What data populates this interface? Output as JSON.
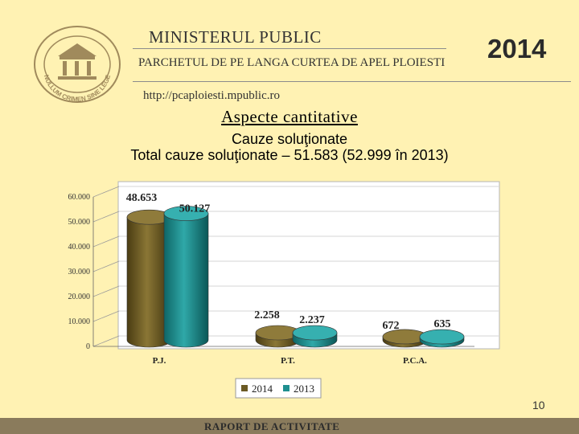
{
  "header": {
    "ministry": "MINISTERUL PUBLIC",
    "office": "PARCHETUL DE PE LANGA CURTEA DE APEL PLOIESTI",
    "year": "2014",
    "url": "http://pcaploiesti.mpublic.ro",
    "logo_text": "NULLUM CRIMEN SINE LEGE"
  },
  "titles": {
    "section": "Aspecte cantitative",
    "subtitle": "Cauze soluţionate",
    "total": "Total cauze soluţionate – 51.583 (52.999 în 2013)"
  },
  "chart_data": {
    "type": "bar",
    "style": "3d-cylinder",
    "categories": [
      "P.J.",
      "P.T.",
      "P.C.A."
    ],
    "series": [
      {
        "name": "2014",
        "values": [
          48653,
          2258,
          672
        ],
        "labels": [
          "48.653",
          "2.258",
          "672"
        ],
        "color": "#6b5a24"
      },
      {
        "name": "2013",
        "values": [
          50127,
          2237,
          635
        ],
        "labels": [
          "50.127",
          "2.237",
          "635"
        ],
        "color": "#1e8f8f"
      }
    ],
    "ylim": [
      0,
      60000
    ],
    "yticks": [
      0,
      10000,
      20000,
      30000,
      40000,
      50000,
      60000
    ],
    "ytick_labels": [
      "0",
      "10.000",
      "20.000",
      "30.000",
      "40.000",
      "50.000",
      "60.000"
    ],
    "grid": true,
    "legend": "bottom"
  },
  "page_number": "10",
  "footer": "RAPORT DE ACTIVITATE"
}
